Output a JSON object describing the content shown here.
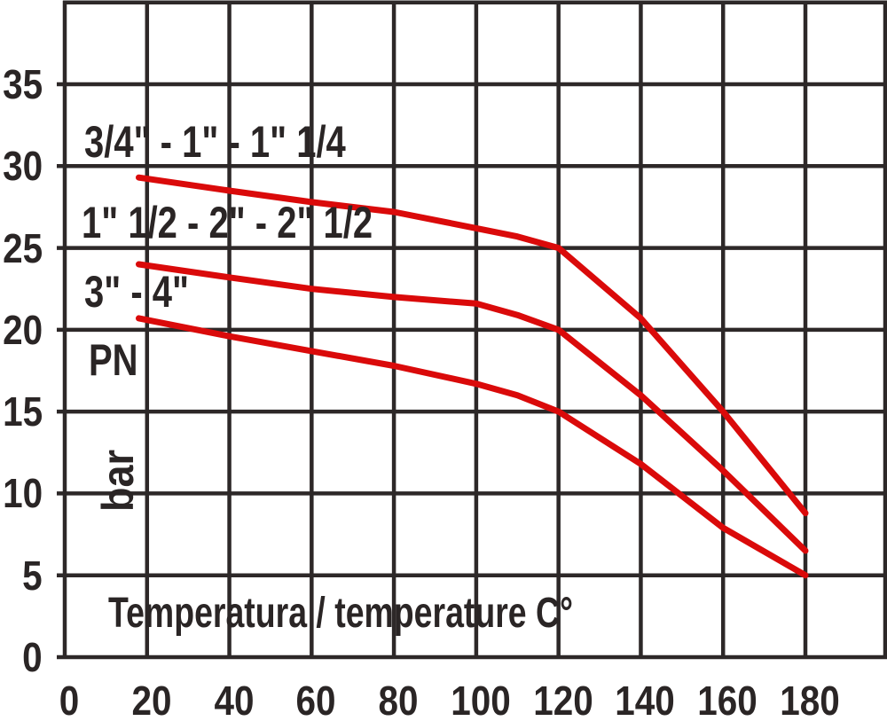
{
  "chart_data": {
    "type": "line",
    "title": "",
    "x_axis": {
      "label": "Temperatura / temperature C°",
      "min": 0,
      "max": 200,
      "tick_step": 20,
      "tick_labels": [
        "0",
        "20",
        "40",
        "60",
        "80",
        "100",
        "120",
        "140",
        "160",
        "180"
      ]
    },
    "y_axis": {
      "name": "PN",
      "unit": "bar",
      "min": 0,
      "max": 40,
      "tick_step": 5,
      "tick_labels": [
        "35",
        "30",
        "25",
        "20",
        "15",
        "10",
        "5",
        "0"
      ]
    },
    "grid": true,
    "legend_position": "inline-left",
    "series": [
      {
        "label": "3/4\" - 1\" - 1\" 1/4",
        "points": [
          [
            18,
            29.3
          ],
          [
            40,
            28.5
          ],
          [
            60,
            27.8
          ],
          [
            80,
            27.2
          ],
          [
            100,
            26.2
          ],
          [
            110,
            25.7
          ],
          [
            120,
            25.0
          ],
          [
            140,
            20.7
          ],
          [
            160,
            15.0
          ],
          [
            180,
            8.8
          ]
        ]
      },
      {
        "label": "1\" 1/2 - 2\" - 2\" 1/2",
        "points": [
          [
            18,
            24.0
          ],
          [
            40,
            23.2
          ],
          [
            60,
            22.5
          ],
          [
            80,
            22.0
          ],
          [
            100,
            21.6
          ],
          [
            110,
            20.9
          ],
          [
            120,
            20.0
          ],
          [
            140,
            16.0
          ],
          [
            160,
            11.4
          ],
          [
            180,
            6.5
          ]
        ]
      },
      {
        "label": "3\" - 4\"",
        "points": [
          [
            18,
            20.7
          ],
          [
            40,
            19.6
          ],
          [
            60,
            18.7
          ],
          [
            80,
            17.8
          ],
          [
            100,
            16.7
          ],
          [
            110,
            16.0
          ],
          [
            120,
            15.0
          ],
          [
            140,
            11.8
          ],
          [
            160,
            7.9
          ],
          [
            180,
            5.0
          ]
        ]
      }
    ],
    "colors": {
      "series": "#da0a0a",
      "grid": "#2d2828",
      "text": "#2a2525",
      "background": "#ffffff"
    }
  }
}
